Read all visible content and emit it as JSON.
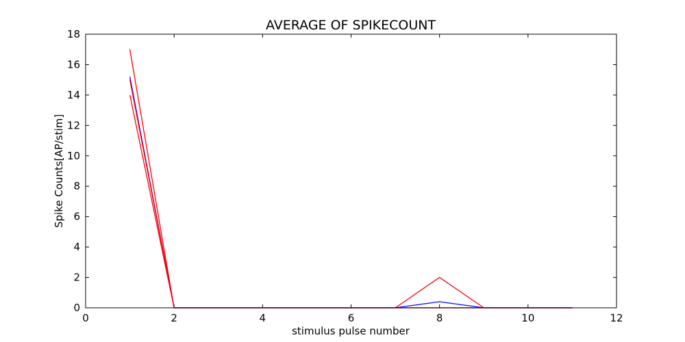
{
  "chart_data": {
    "type": "line",
    "title": "AVERAGE OF SPIKECOUNT",
    "xlabel": "stimulus pulse number",
    "ylabel": "Spike Counts[AP/stim]",
    "xlim": [
      0,
      12
    ],
    "ylim": [
      0,
      18
    ],
    "xticks": [
      0,
      2,
      4,
      6,
      8,
      10,
      12
    ],
    "yticks": [
      0,
      2,
      4,
      6,
      8,
      10,
      12,
      14,
      16,
      18
    ],
    "grid": false,
    "legend": "none",
    "x": [
      1,
      2,
      3,
      4,
      5,
      6,
      7,
      8,
      9,
      10,
      11
    ],
    "series": [
      {
        "color": "#ff0000",
        "values": [
          17,
          0,
          0,
          0,
          0,
          0,
          0,
          2,
          0,
          0,
          0
        ]
      },
      {
        "color": "#ff0000",
        "values": [
          14,
          0,
          0,
          0,
          0,
          0,
          0,
          0,
          0,
          0,
          0
        ]
      },
      {
        "color": "#0000ff",
        "values": [
          15.2,
          0,
          0,
          0,
          0,
          0,
          0,
          0.4,
          0,
          0,
          0
        ]
      },
      {
        "color": "#ff0000",
        "values": [
          15,
          0,
          0,
          0,
          0,
          0,
          0,
          0,
          0,
          0,
          0
        ]
      }
    ]
  }
}
